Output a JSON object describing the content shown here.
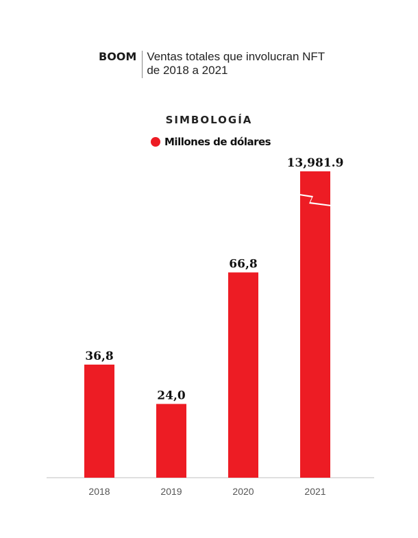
{
  "header": {
    "kicker": "BOOM",
    "title_line1": "Ventas totales que involucran NFT",
    "title_line2": "de 2018 a 2021"
  },
  "legend": {
    "title": "SIMBOLOGÍA",
    "item_label": "Millones de dólares",
    "item_color": "#ed1c24"
  },
  "chart_data": {
    "type": "bar",
    "categories": [
      "2018",
      "2019",
      "2020",
      "2021"
    ],
    "values": [
      36.8,
      24.0,
      66.8,
      13981.9
    ],
    "value_labels": [
      "36,8",
      "24,0",
      "66,8",
      "13,981.9"
    ],
    "broken_axis_on": "2021",
    "bar_color": "#ed1c24",
    "grid": false,
    "legend_position": "top-center"
  }
}
